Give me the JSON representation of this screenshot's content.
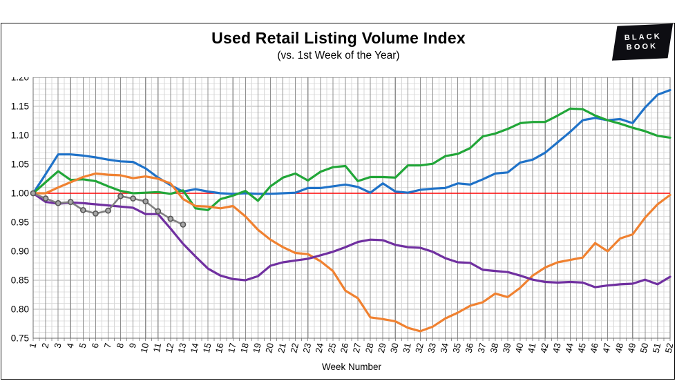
{
  "header": {
    "title": "Used Retail Listing Volume Index",
    "subtitle": "(vs. 1st Week of the Year)"
  },
  "logo": {
    "line1": "BLACK",
    "line2": "BOOK"
  },
  "chart_data": {
    "type": "line",
    "title": "Used Retail Listing Volume Index",
    "subtitle": "(vs. 1st Week of the Year)",
    "xlabel": "Week Number",
    "ylabel": "",
    "legend_position": "none",
    "grid": "major-and-minor",
    "ylim": [
      0.75,
      1.2
    ],
    "yticks": [
      "1.20",
      "1.15",
      "1.10",
      "1.05",
      "1.00",
      "0.95",
      "0.90",
      "0.85",
      "0.80",
      "0.75"
    ],
    "ytick_values": [
      1.2,
      1.15,
      1.1,
      1.05,
      1.0,
      0.95,
      0.9,
      0.85,
      0.8,
      0.75
    ],
    "x": [
      1,
      2,
      3,
      4,
      5,
      6,
      7,
      8,
      9,
      10,
      11,
      12,
      13,
      14,
      15,
      16,
      17,
      18,
      19,
      20,
      21,
      22,
      23,
      24,
      25,
      26,
      27,
      28,
      29,
      30,
      31,
      32,
      33,
      34,
      35,
      36,
      37,
      38,
      39,
      40,
      41,
      42,
      43,
      44,
      45,
      46,
      47,
      48,
      49,
      50,
      51,
      52
    ],
    "baseline": {
      "value": 1.0,
      "color": "#ff0000"
    },
    "colors": {
      "blue": "#1f72c8",
      "green": "#21a638",
      "orange": "#f08130",
      "purple": "#7030a0",
      "gray": "#808080",
      "red": "#ff0000"
    },
    "series": [
      {
        "name": "blue",
        "values": [
          1.0,
          1.033,
          1.067,
          1.067,
          1.065,
          1.062,
          1.058,
          1.055,
          1.054,
          1.043,
          1.027,
          1.014,
          1.003,
          1.007,
          1.003,
          1.0,
          0.999,
          1.0,
          0.999,
          0.999,
          1.0,
          1.001,
          1.009,
          1.009,
          1.012,
          1.015,
          1.011,
          1.001,
          1.017,
          1.003,
          1.001,
          1.006,
          1.008,
          1.009,
          1.017,
          1.015,
          1.024,
          1.034,
          1.036,
          1.053,
          1.058,
          1.07,
          1.088,
          1.106,
          1.126,
          1.13,
          1.126,
          1.128,
          1.121,
          1.148,
          1.17,
          1.178
        ]
      },
      {
        "name": "green",
        "values": [
          1.0,
          1.019,
          1.038,
          1.023,
          1.024,
          1.021,
          1.012,
          1.004,
          1.0,
          1.001,
          1.002,
          0.999,
          1.005,
          0.974,
          0.971,
          0.99,
          0.996,
          1.004,
          0.987,
          1.012,
          1.027,
          1.034,
          1.022,
          1.037,
          1.045,
          1.047,
          1.021,
          1.028,
          1.028,
          1.027,
          1.048,
          1.048,
          1.051,
          1.064,
          1.068,
          1.078,
          1.098,
          1.103,
          1.111,
          1.121,
          1.123,
          1.123,
          1.134,
          1.146,
          1.145,
          1.134,
          1.126,
          1.12,
          1.113,
          1.107,
          1.099,
          1.096
        ]
      },
      {
        "name": "orange",
        "values": [
          1.0,
          1.0,
          1.01,
          1.019,
          1.028,
          1.034,
          1.032,
          1.031,
          1.026,
          1.029,
          1.025,
          1.017,
          0.99,
          0.978,
          0.977,
          0.974,
          0.978,
          0.96,
          0.937,
          0.92,
          0.907,
          0.897,
          0.895,
          0.883,
          0.866,
          0.832,
          0.819,
          0.786,
          0.783,
          0.779,
          0.768,
          0.762,
          0.77,
          0.784,
          0.794,
          0.806,
          0.812,
          0.827,
          0.821,
          0.837,
          0.858,
          0.872,
          0.881,
          0.885,
          0.889,
          0.914,
          0.9,
          0.922,
          0.929,
          0.958,
          0.981,
          0.997
        ]
      },
      {
        "name": "purple",
        "values": [
          1.0,
          0.985,
          0.982,
          0.984,
          0.983,
          0.981,
          0.979,
          0.977,
          0.975,
          0.964,
          0.964,
          0.939,
          0.913,
          0.891,
          0.87,
          0.858,
          0.852,
          0.85,
          0.857,
          0.875,
          0.881,
          0.884,
          0.887,
          0.893,
          0.899,
          0.907,
          0.916,
          0.92,
          0.919,
          0.911,
          0.907,
          0.906,
          0.899,
          0.888,
          0.881,
          0.88,
          0.868,
          0.866,
          0.864,
          0.858,
          0.851,
          0.847,
          0.846,
          0.847,
          0.846,
          0.838,
          0.841,
          0.843,
          0.844,
          0.851,
          0.843,
          0.856
        ]
      },
      {
        "name": "gray-markers",
        "marker": true,
        "values": [
          1.0,
          0.991,
          0.983,
          0.985,
          0.971,
          0.965,
          0.97,
          0.995,
          0.991,
          0.986,
          0.969,
          0.956,
          0.946
        ]
      }
    ]
  }
}
